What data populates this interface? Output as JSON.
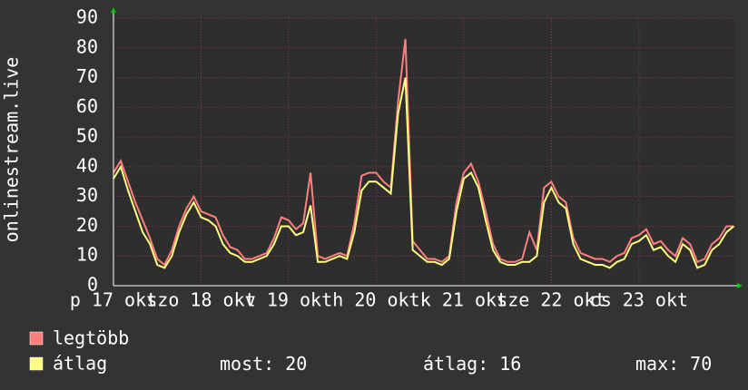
{
  "chart_data": {
    "type": "line",
    "y_label": "onlinestream.live",
    "x": [
      0,
      2,
      4,
      6,
      8,
      10,
      12,
      14,
      16,
      18,
      20,
      22,
      24,
      26,
      28,
      30,
      32,
      34,
      36,
      38,
      40,
      42,
      44,
      46,
      48,
      50,
      52,
      54,
      56,
      58,
      60,
      62,
      64,
      66,
      68,
      70,
      72,
      74,
      76,
      78,
      80,
      82,
      84,
      86,
      88,
      90,
      92,
      94,
      96,
      98,
      100,
      102,
      104,
      106,
      108,
      110,
      112,
      114,
      116,
      118,
      120,
      122,
      124,
      126,
      128,
      130,
      132,
      134,
      136,
      138,
      140,
      142,
      144,
      146,
      148,
      150,
      152,
      154,
      156,
      158,
      160,
      162,
      164,
      166,
      168,
      170
    ],
    "xlim": [
      0,
      170.4
    ],
    "xticks": [
      {
        "value": 0,
        "label": "p 17 okt"
      },
      {
        "value": 24,
        "label": "szo 18 okt"
      },
      {
        "value": 48,
        "label": "v 19 okt"
      },
      {
        "value": 72,
        "label": "h 20 okt"
      },
      {
        "value": 96,
        "label": "k 21 okt"
      },
      {
        "value": 120,
        "label": "sze 22 okt"
      },
      {
        "value": 144,
        "label": "cs 23 okt"
      }
    ],
    "ylim": [
      0,
      90
    ],
    "yticks": [
      0,
      10,
      20,
      30,
      40,
      50,
      60,
      70,
      80,
      90
    ],
    "grid": true,
    "series": [
      {
        "name": "legtöbb",
        "color": "#ff7f7f",
        "values": [
          38,
          42,
          35,
          28,
          22,
          16,
          9,
          7,
          12,
          20,
          26,
          30,
          25,
          24,
          23,
          17,
          13,
          12,
          9,
          9,
          10,
          11,
          16,
          23,
          22,
          19,
          21,
          38,
          10,
          9,
          10,
          11,
          10,
          21,
          37,
          38,
          38,
          35,
          33,
          62,
          83,
          15,
          12,
          9,
          9,
          8,
          10,
          28,
          38,
          41,
          35,
          25,
          14,
          9,
          8,
          8,
          9,
          18,
          12,
          33,
          35,
          30,
          28,
          16,
          11,
          10,
          9,
          9,
          8,
          10,
          11,
          16,
          17,
          19,
          14,
          15,
          12,
          10,
          16,
          14,
          8,
          9,
          14,
          16,
          20,
          20
        ]
      },
      {
        "name": "átlag",
        "color": "#ffff80",
        "values": [
          36,
          40,
          32,
          25,
          18,
          14,
          7,
          6,
          10,
          18,
          24,
          28,
          23,
          22,
          20,
          14,
          11,
          10,
          8,
          8,
          9,
          10,
          14,
          20,
          20,
          17,
          18,
          27,
          8,
          8,
          9,
          10,
          9,
          18,
          32,
          35,
          35,
          33,
          31,
          58,
          70,
          12,
          10,
          8,
          8,
          7,
          9,
          25,
          36,
          38,
          33,
          22,
          12,
          8,
          7,
          7,
          8,
          8,
          10,
          28,
          33,
          28,
          26,
          14,
          9,
          8,
          7,
          7,
          6,
          8,
          9,
          14,
          15,
          17,
          12,
          13,
          10,
          8,
          14,
          12,
          6,
          7,
          12,
          14,
          18,
          20
        ]
      }
    ],
    "stats": [
      {
        "label": "most:",
        "value": 20
      },
      {
        "label": "átlag:",
        "value": 16
      },
      {
        "label": "max:",
        "value": 70
      }
    ]
  }
}
